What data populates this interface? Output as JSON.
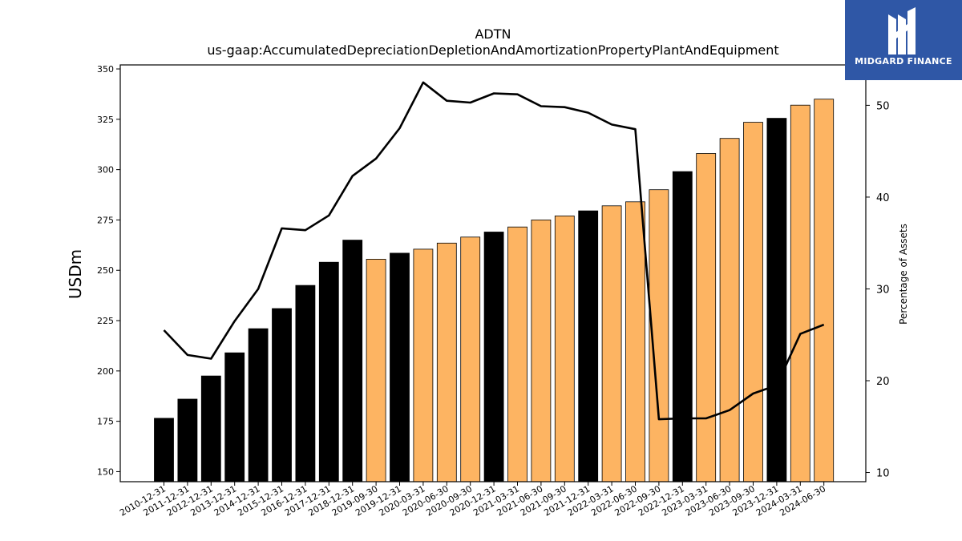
{
  "chart_data": {
    "type": "bar",
    "title": "ADTN",
    "subtitle": "us-gaap:AccumulatedDepreciationDepletionAndAmortizationPropertyPlantAndEquipment",
    "ylabel": "USDm",
    "y2label": "Percentage of Assets",
    "ylim": [
      145,
      352
    ],
    "y2lim": [
      9.0,
      54.4
    ],
    "yticks": [
      150,
      175,
      200,
      225,
      250,
      275,
      300,
      325,
      350
    ],
    "y2ticks": [
      10,
      20,
      30,
      40,
      50
    ],
    "grid": false,
    "categories": [
      "2010-12-31",
      "2011-12-31",
      "2012-12-31",
      "2013-12-31",
      "2014-12-31",
      "2015-12-31",
      "2016-12-31",
      "2017-12-31",
      "2018-12-31",
      "2019-09-30",
      "2019-12-31",
      "2020-03-31",
      "2020-06-30",
      "2020-09-30",
      "2020-12-31",
      "2021-03-31",
      "2021-06-30",
      "2021-09-30",
      "2021-12-31",
      "2022-03-31",
      "2022-06-30",
      "2022-09-30",
      "2022-12-31",
      "2023-03-31",
      "2023-06-30",
      "2023-09-30",
      "2023-12-31",
      "2024-03-31",
      "2024-06-30"
    ],
    "series": [
      {
        "kind": "bar",
        "values": [
          176.5,
          186,
          197.5,
          209,
          221,
          231,
          242.5,
          254,
          265,
          255.5,
          258.5,
          260.5,
          263.5,
          266.5,
          269,
          271.5,
          275,
          277,
          279.5,
          282,
          284,
          290,
          299,
          308,
          315.5,
          323.5,
          325.5,
          332,
          335
        ],
        "period_type": [
          "annual",
          "annual",
          "annual",
          "annual",
          "annual",
          "annual",
          "annual",
          "annual",
          "annual",
          "quarterly",
          "annual",
          "quarterly",
          "quarterly",
          "quarterly",
          "annual",
          "quarterly",
          "quarterly",
          "quarterly",
          "annual",
          "quarterly",
          "quarterly",
          "quarterly",
          "annual",
          "quarterly",
          "quarterly",
          "quarterly",
          "annual",
          "quarterly",
          "quarterly"
        ]
      },
      {
        "kind": "line",
        "axis": "right",
        "values": [
          25.5,
          22.8,
          22.4,
          26.5,
          30,
          36.6,
          36.4,
          38,
          42.3,
          44.2,
          47.5,
          52.5,
          50.5,
          50.3,
          51.3,
          51.2,
          49.9,
          49.8,
          49.2,
          47.9,
          47.4,
          15.8,
          15.9,
          15.9,
          16.8,
          18.6,
          19.5,
          25.1,
          26.1
        ]
      }
    ],
    "colors": {
      "annual": "#000000",
      "quarterly": "#fdb462",
      "line": "#000000"
    }
  },
  "logo": {
    "text": "MIDGARD FINANCE",
    "background": "#2f57a6"
  }
}
